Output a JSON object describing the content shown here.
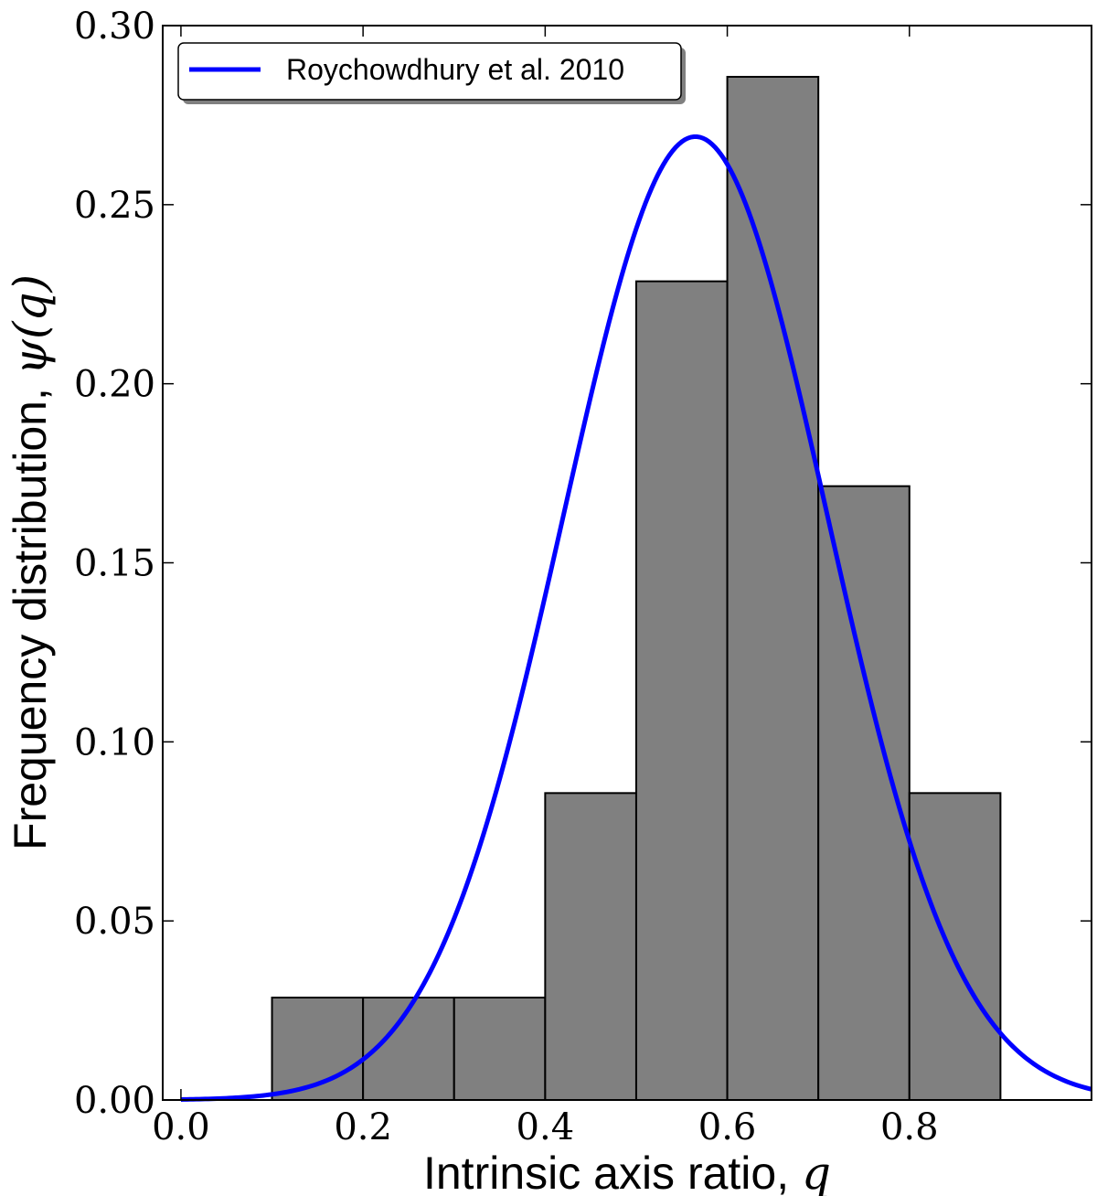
{
  "chart_data": {
    "type": "bar",
    "subtype": "histogram-with-curve",
    "xlabel": "Intrinsic axis ratio, ",
    "xlabel_symbol": "q",
    "ylabel": "Frequency distribution, ",
    "ylabel_symbol": "ψ(q)",
    "xlim": [
      -0.02,
      1.0
    ],
    "ylim": [
      0.0,
      0.3
    ],
    "xticks": [
      0.0,
      0.2,
      0.4,
      0.6,
      0.8
    ],
    "xtick_labels": [
      "0.0",
      "0.2",
      "0.4",
      "0.6",
      "0.8"
    ],
    "yticks": [
      0.0,
      0.05,
      0.1,
      0.15,
      0.2,
      0.25,
      0.3
    ],
    "ytick_labels": [
      "0.00",
      "0.05",
      "0.10",
      "0.15",
      "0.20",
      "0.25",
      "0.30"
    ],
    "grid": false,
    "histogram": {
      "bin_edges": [
        0.1,
        0.2,
        0.3,
        0.4,
        0.5,
        0.6,
        0.7,
        0.8,
        0.9
      ],
      "values": [
        0.0286,
        0.0286,
        0.0286,
        0.0857,
        0.2286,
        0.2857,
        0.1714,
        0.0857
      ],
      "color": "#808080",
      "edge_color": "#000000"
    },
    "series": [
      {
        "name": "Roychowdhury et al. 2010",
        "color": "#0000ff",
        "curve": "gaussian",
        "mean": 0.565,
        "sigma": 0.145,
        "peak": 0.269,
        "x_range": [
          0.0,
          1.0
        ]
      }
    ],
    "legend": {
      "position": "upper-left",
      "entries": [
        "Roychowdhury et al. 2010"
      ]
    }
  }
}
